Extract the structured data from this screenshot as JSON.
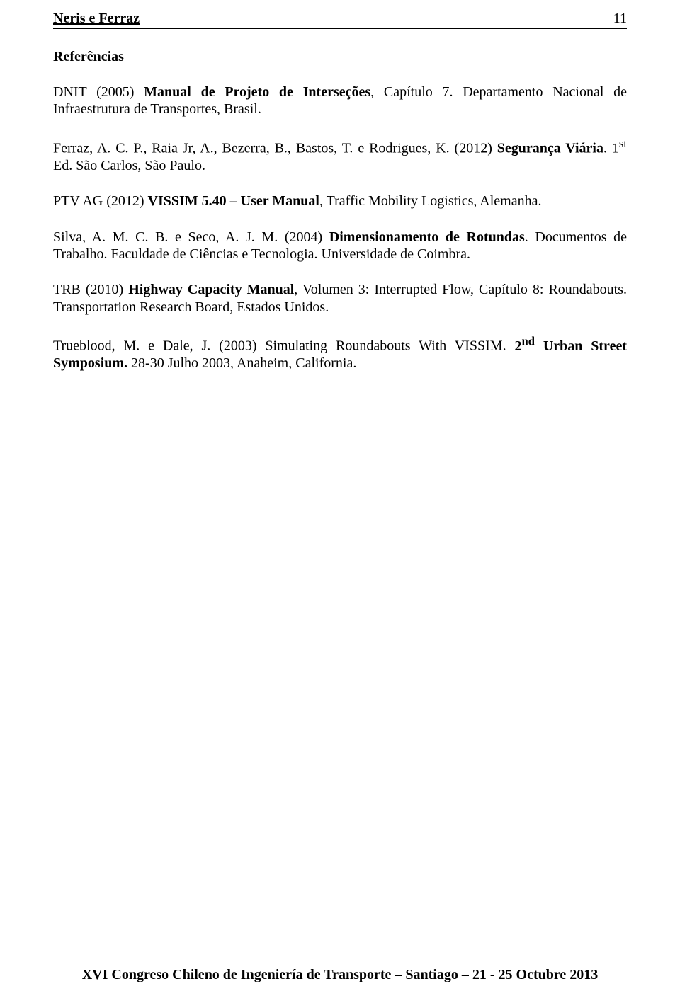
{
  "header": {
    "running_title": "Neris e Ferraz",
    "page_number": "11"
  },
  "section_title": "Referências",
  "references": {
    "r1": {
      "pre": "DNIT (2005) ",
      "bold": "Manual de Projeto de Interseções",
      "post": ", Capítulo 7. Departamento Nacional de Infraestrutura de Transportes, Brasil."
    },
    "r2": {
      "pre": "Ferraz, A. C. P., Raia Jr, A., Bezerra, B., Bastos, T. e Rodrigues, K. (2012) ",
      "bold": "Segurança Viária",
      "post_a": ". 1",
      "sup": "st",
      "post_b": " Ed. São Carlos, São Paulo."
    },
    "r3": {
      "pre": "PTV AG (2012) ",
      "bold": "VISSIM 5.40 – User Manual",
      "post": ", Traffic Mobility Logistics, Alemanha."
    },
    "r4": {
      "pre": "Silva, A. M. C. B. e Seco, A. J. M. (2004) ",
      "bold": "Dimensionamento de Rotundas",
      "post": ". Documentos de Trabalho. Faculdade de Ciências e Tecnologia. Universidade de Coimbra."
    },
    "r5": {
      "pre": "TRB (2010) ",
      "bold": "Highway Capacity Manual",
      "post": ", Volumen 3: Interrupted Flow, Capítulo 8: Roundabouts. Transportation Research Board, Estados Unidos."
    },
    "r6": {
      "pre": "Trueblood, M. e Dale, J. (2003) Simulating Roundabouts With VISSIM. ",
      "bold_a": "2",
      "sup": "nd",
      "bold_b": " Urban Street Symposium.",
      "post": " 28-30 Julho 2003, Anaheim, California."
    }
  },
  "footer": "XVI Congreso Chileno de Ingeniería de Transporte – Santiago – 21 - 25 Octubre 2013"
}
